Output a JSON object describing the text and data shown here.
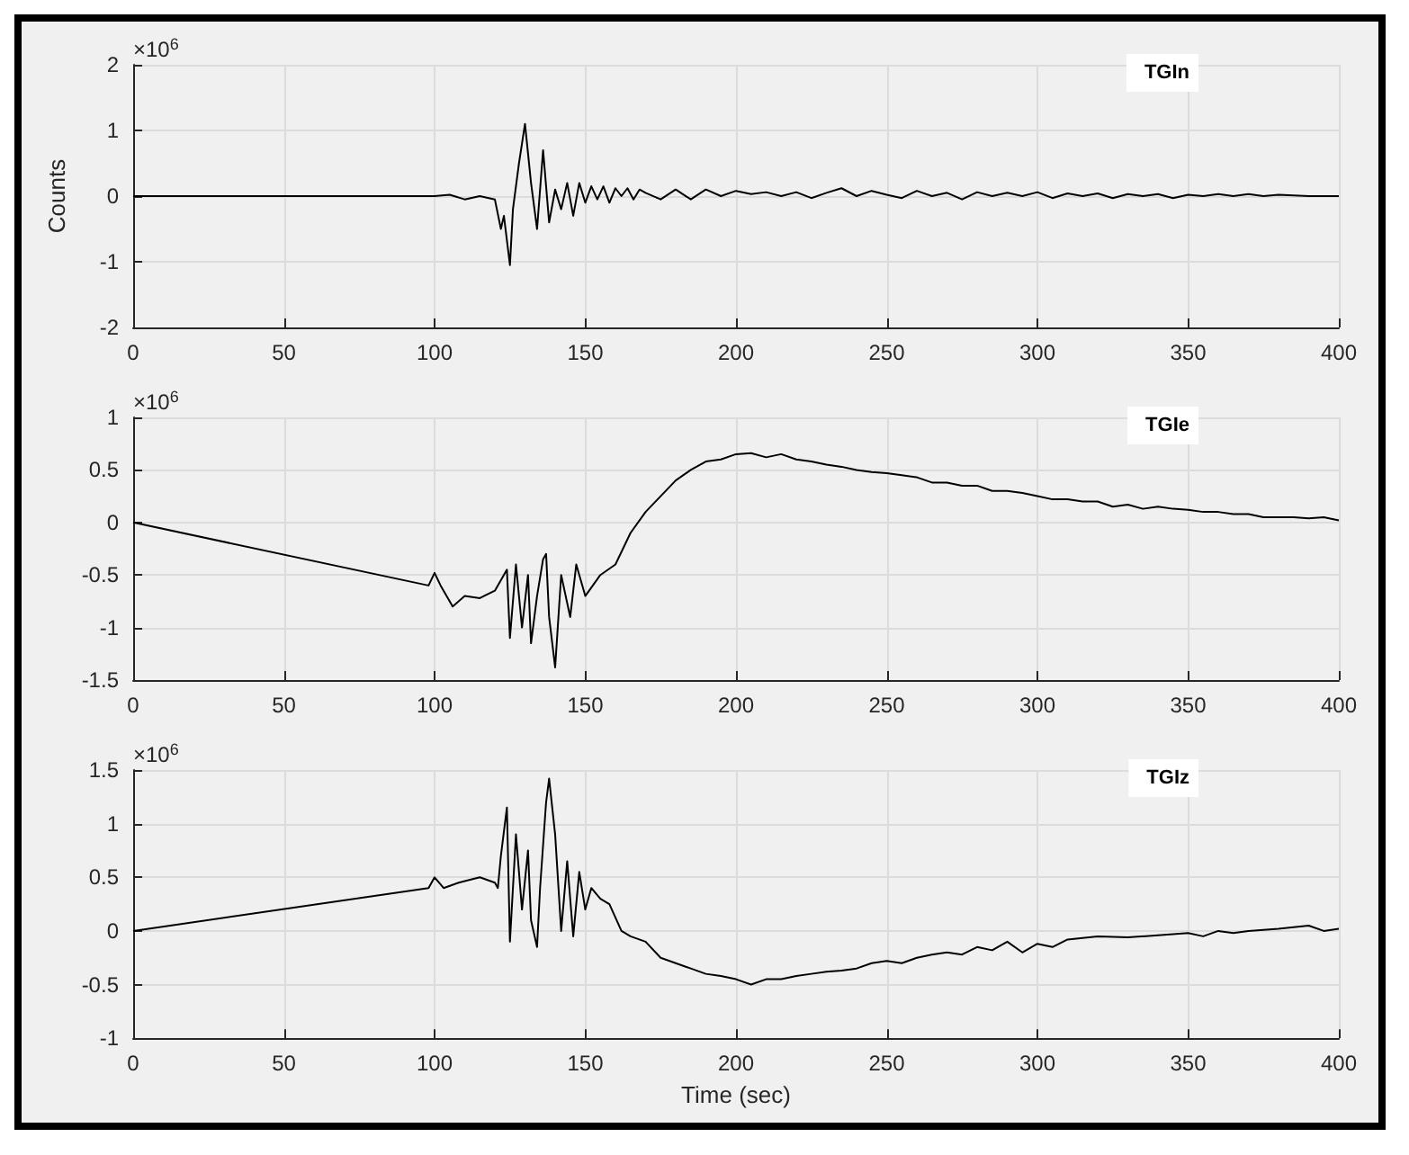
{
  "chart_data": [
    {
      "type": "line",
      "ylabel": "Counts",
      "annotations": [
        "×10$^{6}$"
      ],
      "xlim": [
        0,
        400
      ],
      "xticks": [
        0,
        50,
        100,
        150,
        200,
        250,
        300,
        350,
        400
      ],
      "ylim": [
        -2,
        2
      ],
      "yticks": [
        -2,
        -1,
        0,
        1,
        2
      ],
      "grid": true,
      "legend": "top right",
      "marker": "none",
      "line_style": "solid",
      "x": [
        0,
        60,
        100,
        105,
        110,
        115,
        120,
        122,
        123,
        125,
        126,
        128,
        130,
        132,
        134,
        136,
        138,
        140,
        142,
        144,
        146,
        148,
        150,
        152,
        154,
        156,
        158,
        160,
        162,
        164,
        166,
        168,
        170,
        175,
        180,
        185,
        190,
        195,
        200,
        205,
        210,
        215,
        220,
        225,
        230,
        235,
        240,
        245,
        250,
        255,
        260,
        265,
        270,
        275,
        280,
        285,
        290,
        295,
        300,
        305,
        310,
        315,
        320,
        325,
        330,
        335,
        340,
        345,
        350,
        355,
        360,
        365,
        370,
        375,
        380,
        390,
        400
      ],
      "series": [
        {
          "name": "TGIn",
          "color": "#000000",
          "values": [
            0,
            0,
            0,
            0.02,
            -0.05,
            0,
            -0.05,
            -0.5,
            -0.3,
            -1.05,
            -0.2,
            0.5,
            1.1,
            0.2,
            -0.5,
            0.7,
            -0.4,
            0.1,
            -0.2,
            0.2,
            -0.3,
            0.2,
            -0.1,
            0.15,
            -0.05,
            0.15,
            -0.1,
            0.12,
            0,
            0.12,
            -0.05,
            0.1,
            0.05,
            -0.05,
            0.1,
            -0.05,
            0.1,
            0,
            0.08,
            0.03,
            0.06,
            0,
            0.06,
            -0.03,
            0.05,
            0.12,
            0,
            0.08,
            0.02,
            -0.03,
            0.08,
            0,
            0.05,
            -0.05,
            0.06,
            0,
            0.05,
            0,
            0.06,
            -0.03,
            0.04,
            0,
            0.04,
            -0.03,
            0.03,
            0,
            0.03,
            -0.03,
            0.02,
            0,
            0.03,
            0,
            0.03,
            0,
            0.02,
            0,
            0
          ]
        }
      ]
    },
    {
      "type": "line",
      "annotations": [
        "×10$^{6}$"
      ],
      "xlim": [
        0,
        400
      ],
      "xticks": [
        0,
        50,
        100,
        150,
        200,
        250,
        300,
        350,
        400
      ],
      "ylim": [
        -1.5,
        1
      ],
      "yticks": [
        -1.5,
        -1,
        -0.5,
        0,
        0.5,
        1
      ],
      "grid": true,
      "legend": "top right",
      "marker": "none",
      "line_style": "solid",
      "x": [
        0,
        98,
        100,
        102,
        106,
        110,
        115,
        120,
        124,
        125,
        127,
        129,
        131,
        132,
        134,
        136,
        137,
        138,
        140,
        142,
        145,
        147,
        150,
        155,
        160,
        165,
        170,
        175,
        180,
        185,
        190,
        195,
        200,
        205,
        210,
        215,
        220,
        225,
        230,
        235,
        240,
        245,
        250,
        255,
        260,
        265,
        270,
        275,
        280,
        285,
        290,
        295,
        300,
        305,
        310,
        315,
        320,
        325,
        330,
        335,
        340,
        345,
        350,
        355,
        360,
        365,
        370,
        375,
        380,
        385,
        390,
        395,
        400
      ],
      "series": [
        {
          "name": "TGIe",
          "color": "#000000",
          "values": [
            0,
            -0.6,
            -0.48,
            -0.6,
            -0.8,
            -0.7,
            -0.72,
            -0.65,
            -0.45,
            -1.1,
            -0.4,
            -1.0,
            -0.5,
            -1.15,
            -0.7,
            -0.35,
            -0.3,
            -0.9,
            -1.38,
            -0.5,
            -0.9,
            -0.4,
            -0.7,
            -0.5,
            -0.4,
            -0.1,
            0.1,
            0.25,
            0.4,
            0.5,
            0.58,
            0.6,
            0.65,
            0.66,
            0.62,
            0.65,
            0.6,
            0.58,
            0.55,
            0.53,
            0.5,
            0.48,
            0.47,
            0.45,
            0.43,
            0.38,
            0.38,
            0.35,
            0.35,
            0.3,
            0.3,
            0.28,
            0.25,
            0.22,
            0.22,
            0.2,
            0.2,
            0.15,
            0.17,
            0.13,
            0.15,
            0.13,
            0.12,
            0.1,
            0.1,
            0.08,
            0.08,
            0.05,
            0.05,
            0.05,
            0.04,
            0.05,
            0.02
          ]
        }
      ]
    },
    {
      "type": "line",
      "xlabel": "Time (sec)",
      "annotations": [
        "×10$^{6}$"
      ],
      "xlim": [
        0,
        400
      ],
      "xticks": [
        0,
        50,
        100,
        150,
        200,
        250,
        300,
        350,
        400
      ],
      "ylim": [
        -1,
        1.5
      ],
      "yticks": [
        -1,
        -0.5,
        0,
        0.5,
        1,
        1.5
      ],
      "grid": true,
      "legend": "top right",
      "marker": "none",
      "line_style": "solid",
      "x": [
        0,
        98,
        100,
        103,
        108,
        115,
        120,
        121,
        122,
        124,
        125,
        127,
        129,
        131,
        132,
        134,
        135,
        137,
        138,
        140,
        142,
        144,
        146,
        148,
        150,
        152,
        155,
        158,
        162,
        165,
        170,
        175,
        180,
        185,
        190,
        195,
        200,
        205,
        210,
        215,
        220,
        225,
        230,
        235,
        240,
        245,
        250,
        255,
        260,
        265,
        270,
        275,
        280,
        285,
        290,
        295,
        300,
        305,
        310,
        320,
        330,
        340,
        350,
        355,
        360,
        365,
        370,
        380,
        390,
        395,
        400
      ],
      "series": [
        {
          "name": "TGIz",
          "color": "#000000",
          "values": [
            0,
            0.4,
            0.5,
            0.4,
            0.45,
            0.5,
            0.45,
            0.4,
            0.7,
            1.15,
            -0.1,
            0.9,
            0.2,
            0.75,
            0.1,
            -0.15,
            0.4,
            1.2,
            1.42,
            0.9,
            0,
            0.65,
            -0.05,
            0.55,
            0.2,
            0.4,
            0.3,
            0.25,
            0,
            -0.05,
            -0.1,
            -0.25,
            -0.3,
            -0.35,
            -0.4,
            -0.42,
            -0.45,
            -0.5,
            -0.45,
            -0.45,
            -0.42,
            -0.4,
            -0.38,
            -0.37,
            -0.35,
            -0.3,
            -0.28,
            -0.3,
            -0.25,
            -0.22,
            -0.2,
            -0.22,
            -0.15,
            -0.18,
            -0.1,
            -0.2,
            -0.12,
            -0.15,
            -0.08,
            -0.05,
            -0.06,
            -0.04,
            -0.02,
            -0.05,
            0,
            -0.02,
            0,
            0.02,
            0.05,
            0,
            0.02
          ]
        }
      ]
    }
  ]
}
